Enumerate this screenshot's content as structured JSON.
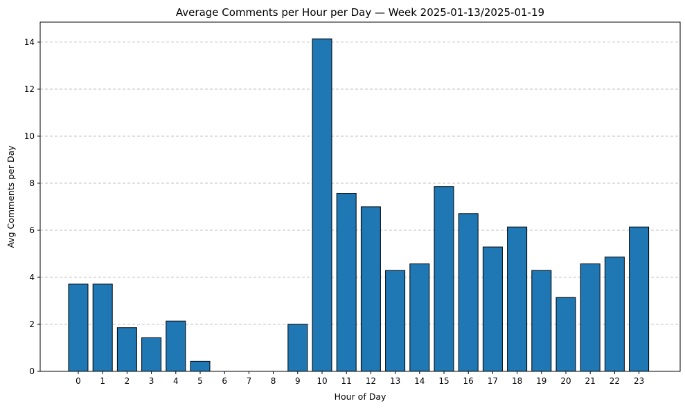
{
  "chart_data": {
    "type": "bar",
    "title": "Average Comments per Hour per Day — Week 2025-01-13/2025-01-19",
    "xlabel": "Hour of Day",
    "ylabel": "Avg Comments per Day",
    "categories": [
      "0",
      "1",
      "2",
      "3",
      "4",
      "5",
      "6",
      "7",
      "8",
      "9",
      "10",
      "11",
      "12",
      "13",
      "14",
      "15",
      "16",
      "17",
      "18",
      "19",
      "20",
      "21",
      "22",
      "23"
    ],
    "values": [
      3.71,
      3.71,
      1.86,
      1.43,
      2.14,
      0.43,
      0,
      0,
      0,
      2.0,
      14.14,
      7.57,
      7.0,
      4.29,
      4.57,
      7.86,
      6.71,
      5.29,
      6.14,
      4.29,
      3.14,
      4.57,
      4.86,
      6.14
    ],
    "ylim": [
      0,
      14.85
    ],
    "yticks": [
      0,
      2,
      4,
      6,
      8,
      10,
      12,
      14
    ],
    "grid": "y-dashed",
    "colors": {
      "bar": "#1f77b4",
      "edge": "#000000",
      "grid": "#b0b0b0"
    }
  }
}
